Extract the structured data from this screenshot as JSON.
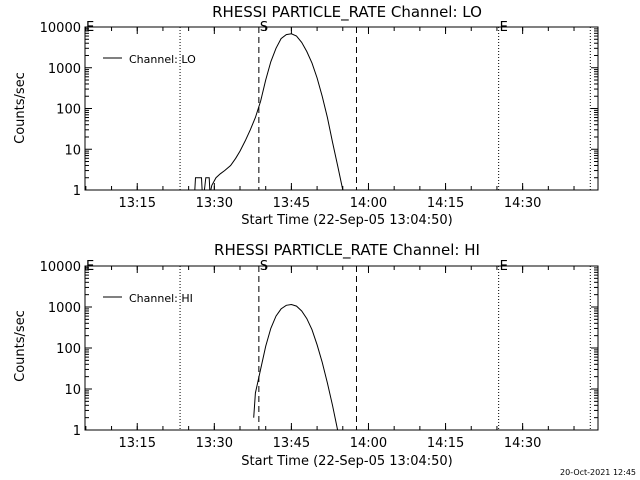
{
  "page": {
    "timestamp": "20-Oct-2021 12:45"
  },
  "chart_data": [
    {
      "type": "line",
      "title": "RHESSI PARTICLE_RATE Channel: LO",
      "xlabel": "Start Time (22-Sep-05 13:04:50)",
      "ylabel": "Counts/sec",
      "yscale": "log",
      "ylim": [
        1,
        10000
      ],
      "xlim": [
        "13:04:50",
        "14:44:40"
      ],
      "x_ticks": [
        "13:15",
        "13:30",
        "13:45",
        "14:00",
        "14:15",
        "14:30"
      ],
      "y_ticks": [
        "1",
        "10",
        "100",
        "1000",
        "10000"
      ],
      "grid": false,
      "legend": {
        "position": "top-left",
        "entries": [
          "Channel: LO"
        ]
      },
      "markers": [
        {
          "label": "",
          "time": "13:23:20",
          "style": "dotted"
        },
        {
          "label": "S",
          "time": "13:38:40",
          "style": "dashed"
        },
        {
          "label": "",
          "time": "13:57:40",
          "style": "dashed"
        },
        {
          "label": "E",
          "time": "14:25:20",
          "style": "dotted"
        },
        {
          "label": "",
          "time": "14:43:10",
          "style": "dotted"
        },
        {
          "label": "E",
          "time": "13:04:50",
          "style": "none"
        }
      ],
      "series": [
        {
          "name": "Channel: LO",
          "points": [
            [
              "13:26:10",
              0.8
            ],
            [
              "13:26:20",
              2
            ],
            [
              "13:27:30",
              2
            ],
            [
              "13:27:40",
              0.8
            ],
            [
              "13:28:00",
              0.8
            ],
            [
              "13:28:20",
              2
            ],
            [
              "13:29:00",
              2
            ],
            [
              "13:29:10",
              0.8
            ],
            [
              "13:29:30",
              1.3
            ],
            [
              "13:30:20",
              2
            ],
            [
              "13:31:10",
              2.5
            ],
            [
              "13:32:00",
              3
            ],
            [
              "13:33:10",
              4
            ],
            [
              "13:34:10",
              6
            ],
            [
              "13:35:00",
              9
            ],
            [
              "13:36:00",
              16
            ],
            [
              "13:37:00",
              30
            ],
            [
              "13:38:00",
              60
            ],
            [
              "13:39:00",
              150
            ],
            [
              "13:40:00",
              500
            ],
            [
              "13:41:00",
              1400
            ],
            [
              "13:42:00",
              3000
            ],
            [
              "13:43:00",
              5200
            ],
            [
              "13:44:00",
              6500
            ],
            [
              "13:45:00",
              6800
            ],
            [
              "13:46:00",
              6000
            ],
            [
              "13:47:00",
              4200
            ],
            [
              "13:48:00",
              2500
            ],
            [
              "13:49:00",
              1300
            ],
            [
              "13:50:00",
              560
            ],
            [
              "13:51:00",
              200
            ],
            [
              "13:52:00",
              60
            ],
            [
              "13:53:00",
              15
            ],
            [
              "13:54:00",
              4
            ],
            [
              "13:55:00",
              1
            ]
          ]
        }
      ]
    },
    {
      "type": "line",
      "title": "RHESSI PARTICLE_RATE Channel: HI",
      "xlabel": "Start Time (22-Sep-05 13:04:50)",
      "ylabel": "Counts/sec",
      "yscale": "log",
      "ylim": [
        1,
        10000
      ],
      "xlim": [
        "13:04:50",
        "14:44:40"
      ],
      "x_ticks": [
        "13:15",
        "13:30",
        "13:45",
        "14:00",
        "14:15",
        "14:30"
      ],
      "y_ticks": [
        "1",
        "10",
        "100",
        "1000",
        "10000"
      ],
      "grid": false,
      "legend": {
        "position": "top-left",
        "entries": [
          "Channel: HI"
        ]
      },
      "markers": [
        {
          "label": "",
          "time": "13:23:20",
          "style": "dotted"
        },
        {
          "label": "S",
          "time": "13:38:40",
          "style": "dashed"
        },
        {
          "label": "",
          "time": "13:57:40",
          "style": "dashed"
        },
        {
          "label": "E",
          "time": "14:25:20",
          "style": "dotted"
        },
        {
          "label": "",
          "time": "14:43:10",
          "style": "dotted"
        },
        {
          "label": "E",
          "time": "13:04:50",
          "style": "none"
        }
      ],
      "series": [
        {
          "name": "Channel: HI",
          "points": [
            [
              "13:37:40",
              2
            ],
            [
              "13:38:00",
              8
            ],
            [
              "13:39:00",
              30
            ],
            [
              "13:40:00",
              110
            ],
            [
              "13:41:00",
              300
            ],
            [
              "13:42:00",
              600
            ],
            [
              "13:43:00",
              900
            ],
            [
              "13:44:00",
              1100
            ],
            [
              "13:45:00",
              1150
            ],
            [
              "13:46:00",
              1050
            ],
            [
              "13:47:00",
              800
            ],
            [
              "13:48:00",
              520
            ],
            [
              "13:49:00",
              280
            ],
            [
              "13:50:00",
              120
            ],
            [
              "13:51:00",
              45
            ],
            [
              "13:52:00",
              14
            ],
            [
              "13:53:00",
              4
            ],
            [
              "13:54:00",
              1
            ]
          ]
        }
      ]
    }
  ]
}
